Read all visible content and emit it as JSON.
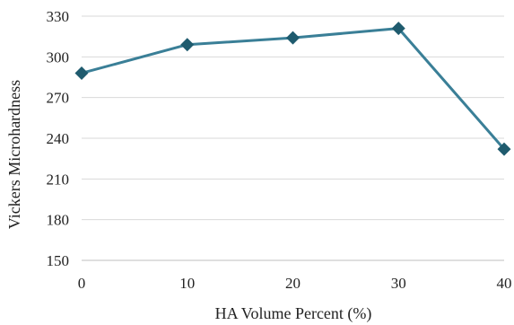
{
  "chart_data": {
    "type": "line",
    "title": "",
    "xlabel": "HA Volume Percent (%)",
    "ylabel": "Vickers Microhardness",
    "x": [
      0,
      10,
      20,
      30,
      40
    ],
    "xlim": [
      0,
      40
    ],
    "ylim": [
      150,
      330
    ],
    "x_ticks": [
      0,
      10,
      20,
      30,
      40
    ],
    "y_ticks": [
      150,
      180,
      210,
      240,
      270,
      300,
      330
    ],
    "series": [
      {
        "values": [
          288,
          309,
          314,
          321,
          232
        ],
        "color": "#3a7f97",
        "marker": "diamond",
        "marker_color": "#1f5b6e"
      }
    ],
    "grid": "horizontal",
    "grid_color": "#d9d9d9",
    "legend": "none"
  }
}
